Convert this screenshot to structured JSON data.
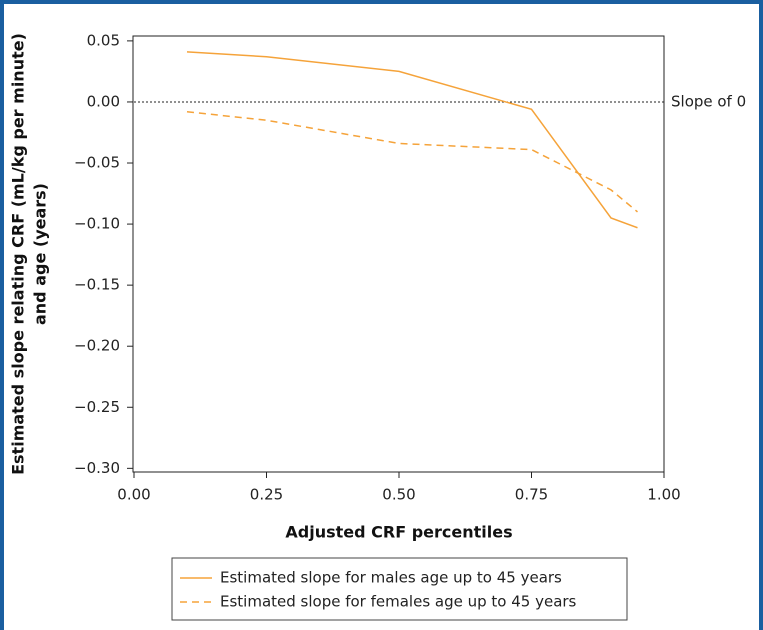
{
  "chart_data": {
    "type": "line",
    "y_label_lines": [
      "Estimated slope relating CRF (mL/kg per minute)",
      "and age (years)"
    ],
    "x_label": "Adjusted CRF percentiles",
    "x": [
      0.1,
      0.25,
      0.5,
      0.75,
      0.9,
      0.95
    ],
    "series": [
      {
        "name": "Estimated slope for males age up to 45 years",
        "color": "#f5a33a",
        "linestyle": "solid",
        "values": [
          0.041,
          0.037,
          0.025,
          -0.006,
          -0.095,
          -0.103
        ]
      },
      {
        "name": "Estimated slope for females age up to 45 years",
        "color": "#f5a33a",
        "linestyle": "dashed",
        "values": [
          -0.008,
          -0.015,
          -0.034,
          -0.039,
          -0.072,
          -0.09
        ]
      }
    ],
    "reference_line": {
      "value": 0,
      "label": "Slope of 0"
    },
    "xlim": [
      0,
      1
    ],
    "ylim": [
      -0.303,
      0.054
    ],
    "xticks": [
      {
        "value": 0,
        "label": "0.00"
      },
      0.25,
      {
        "value": 0.5,
        "label": "0.50"
      },
      0.75,
      {
        "value": 1,
        "label": "1.00"
      }
    ],
    "yticks": [
      {
        "value": 0.05,
        "label": "0.05"
      },
      {
        "value": 0,
        "label": "0.00"
      },
      {
        "value": -0.05,
        "label": "−0.05"
      },
      {
        "value": -0.1,
        "label": "−0.10"
      },
      {
        "value": -0.15,
        "label": "−0.15"
      },
      {
        "value": -0.2,
        "label": "−0.20"
      },
      {
        "value": -0.25,
        "label": "−0.25"
      },
      {
        "value": -0.3,
        "label": "−0.30"
      }
    ]
  }
}
